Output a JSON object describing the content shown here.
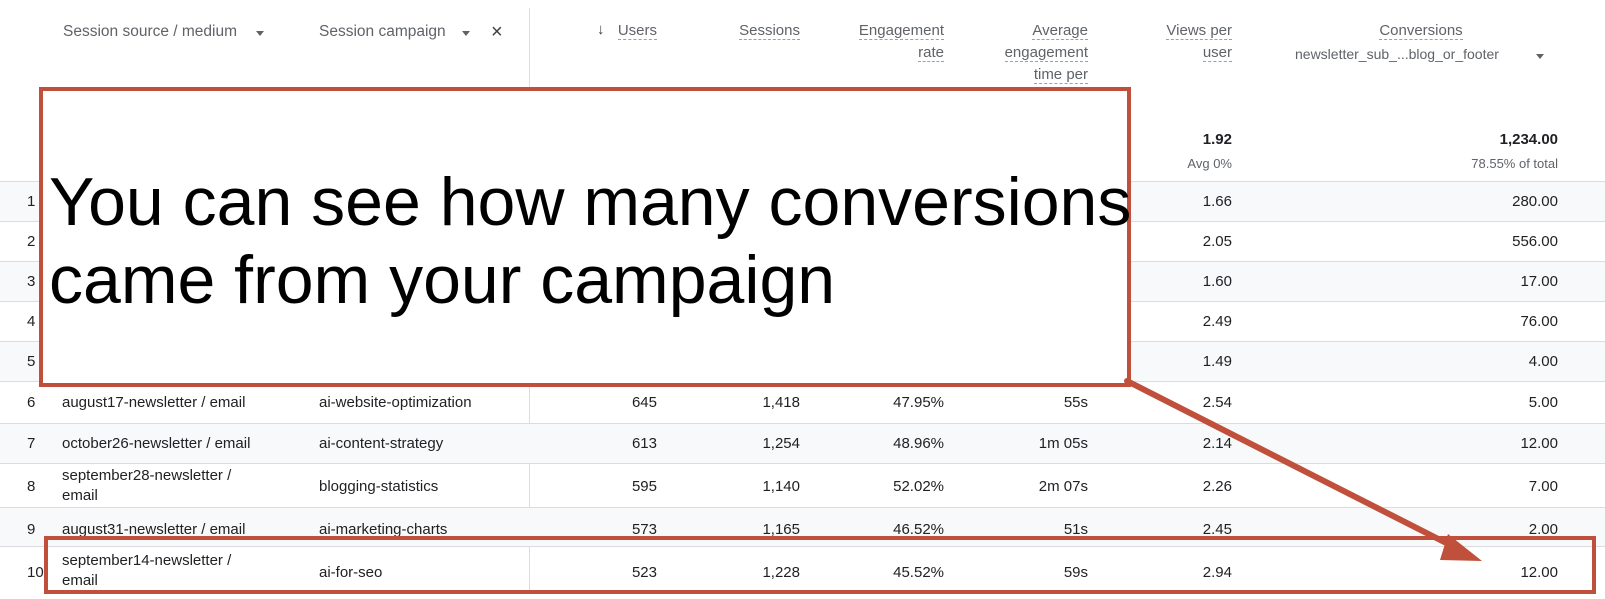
{
  "header": {
    "dim1_label": "Session source / medium",
    "dim2_label": "Session campaign",
    "close_symbol": "×",
    "sort_arrow": "↓",
    "users_label": "Users",
    "sessions_label": "Sessions",
    "engagement_rate_line1": "Engagement",
    "engagement_rate_line2": "rate",
    "avg_time_line1": "Average",
    "avg_time_line2": "engagement",
    "avg_time_line3": "time per",
    "views_line1": "Views per",
    "views_line2": "user",
    "conversions_label": "Conversions",
    "conversions_event": "newsletter_sub_...blog_or_footer"
  },
  "totals": {
    "views_per_user": "1.92",
    "views_sub": "Avg 0%",
    "conversions": "1,234.00",
    "conversions_sub": "78.55% of total"
  },
  "rows": [
    {
      "idx": "1",
      "source": "",
      "campaign": "",
      "users": "",
      "sessions": "",
      "engagement_rate": "",
      "avg_time": "",
      "views_per_user": "1.66",
      "conversions": "280.00"
    },
    {
      "idx": "2",
      "source": "",
      "campaign": "",
      "users": "",
      "sessions": "",
      "engagement_rate": "",
      "avg_time": "",
      "views_per_user": "2.05",
      "conversions": "556.00"
    },
    {
      "idx": "3",
      "source": "",
      "campaign": "",
      "users": "",
      "sessions": "",
      "engagement_rate": "",
      "avg_time": "",
      "views_per_user": "1.60",
      "conversions": "17.00"
    },
    {
      "idx": "4",
      "source": "",
      "campaign": "",
      "users": "",
      "sessions": "",
      "engagement_rate": "",
      "avg_time": "",
      "views_per_user": "2.49",
      "conversions": "76.00"
    },
    {
      "idx": "5",
      "source": "",
      "campaign": "",
      "users": "",
      "sessions": "",
      "engagement_rate": "",
      "avg_time": "",
      "views_per_user": "1.49",
      "conversions": "4.00"
    },
    {
      "idx": "6",
      "source": "august17-newsletter / email",
      "campaign": "ai-website-optimization",
      "users": "645",
      "sessions": "1,418",
      "engagement_rate": "47.95%",
      "avg_time": "55s",
      "views_per_user": "2.54",
      "conversions": "5.00"
    },
    {
      "idx": "7",
      "source": "october26-newsletter / email",
      "campaign": "ai-content-strategy",
      "users": "613",
      "sessions": "1,254",
      "engagement_rate": "48.96%",
      "avg_time": "1m 05s",
      "views_per_user": "2.14",
      "conversions": "12.00"
    },
    {
      "idx": "8",
      "source": "september28-newsletter / email",
      "campaign": "blogging-statistics",
      "users": "595",
      "sessions": "1,140",
      "engagement_rate": "52.02%",
      "avg_time": "2m 07s",
      "views_per_user": "2.26",
      "conversions": "7.00"
    },
    {
      "idx": "9",
      "source": "august31-newsletter / email",
      "campaign": "ai-marketing-charts",
      "users": "573",
      "sessions": "1,165",
      "engagement_rate": "46.52%",
      "avg_time": "51s",
      "views_per_user": "2.45",
      "conversions": "2.00"
    },
    {
      "idx": "10",
      "source": "september14-newsletter / email",
      "campaign": "ai-for-seo",
      "users": "523",
      "sessions": "1,228",
      "engagement_rate": "45.52%",
      "avg_time": "59s",
      "views_per_user": "2.94",
      "conversions": "12.00"
    }
  ],
  "annotation": {
    "line1": "You can see how many conversions",
    "line2": "came from your campaign",
    "color": "#c0503c"
  }
}
